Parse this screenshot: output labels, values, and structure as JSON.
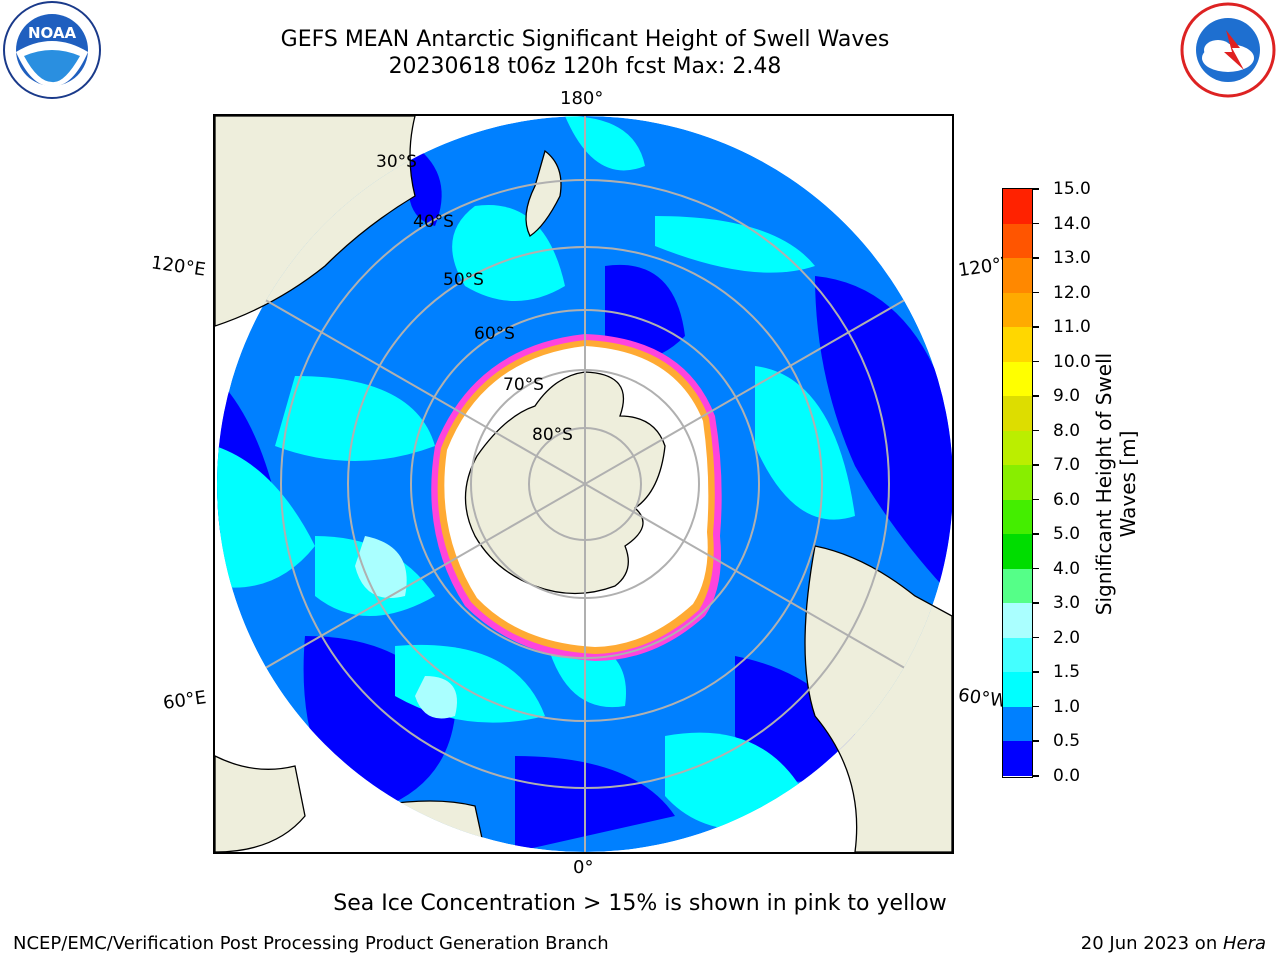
{
  "title": {
    "line1": "GEFS MEAN Antarctic Significant Height of Swell Waves",
    "line2": "20230618 t06z 120h fcst   Max: 2.48"
  },
  "logos": {
    "noara": {
      "name": "noaa-logo",
      "text": "NOAA",
      "ring_text": "NATIONAL OCEANIC AND ATMOSPHERIC ADMINISTRATION · U.S. DEPARTMENT OF COMMERCE"
    },
    "nws": {
      "name": "nws-logo",
      "ring_text": "NATIONAL WEATHER SERVICE"
    }
  },
  "map": {
    "projection": "south-polar-stereographic",
    "longitude_labels": {
      "top": "180°",
      "bottom": "0°",
      "upper_left": "120°E",
      "upper_right": "120°W",
      "lower_left": "60°E",
      "lower_right": "60°W"
    },
    "latitude_labels": [
      "30°S",
      "40°S",
      "50°S",
      "60°S",
      "70°S",
      "80°S"
    ],
    "colors": {
      "land": "#eeeedc",
      "ice_free_open": "#ffffff",
      "ice_edge": "#ff44dd",
      "ice_core": "#ffaa33",
      "graticule": "#b0b0b0"
    }
  },
  "colorbar": {
    "label": "Significant Height of Swell Waves [m]",
    "label_line1": "Significant Height of Swell",
    "label_line2": "Waves [m]",
    "ticks": [
      "0.0",
      "0.5",
      "1.0",
      "1.5",
      "2.0",
      "3.0",
      "4.0",
      "5.0",
      "6.0",
      "7.0",
      "8.0",
      "9.0",
      "10.0",
      "11.0",
      "12.0",
      "13.0",
      "14.0",
      "15.0"
    ],
    "colors": [
      "#0000ff",
      "#0080ff",
      "#00ffff",
      "#44ffff",
      "#aaffff",
      "#55ff88",
      "#00dd00",
      "#44ee00",
      "#88ee00",
      "#bbee00",
      "#dddd00",
      "#ffff00",
      "#ffd700",
      "#ffaa00",
      "#ff8800",
      "#ff5500",
      "#ff2200",
      "#ff0000"
    ]
  },
  "chart_data": {
    "type": "heatmap",
    "title": "GEFS MEAN Antarctic Significant Height of Swell Waves",
    "subtitle": "20230618 t06z 120h fcst   Max: 2.48",
    "variable": "Significant Height of Swell Waves [m]",
    "max": 2.48,
    "range": [
      0.0,
      15.0
    ],
    "bounds": [
      0.0,
      0.5,
      1.0,
      1.5,
      2.0,
      3.0,
      4.0,
      5.0,
      6.0,
      7.0,
      8.0,
      9.0,
      10.0,
      11.0,
      12.0,
      13.0,
      14.0,
      15.0
    ]
  },
  "footer": {
    "note": "Sea Ice Concentration > 15% is shown in pink to yellow",
    "left": "NCEP/EMC/Verification Post Processing Product Generation Branch",
    "right_prefix": "20 Jun 2023 on ",
    "right_host": "Hera"
  }
}
